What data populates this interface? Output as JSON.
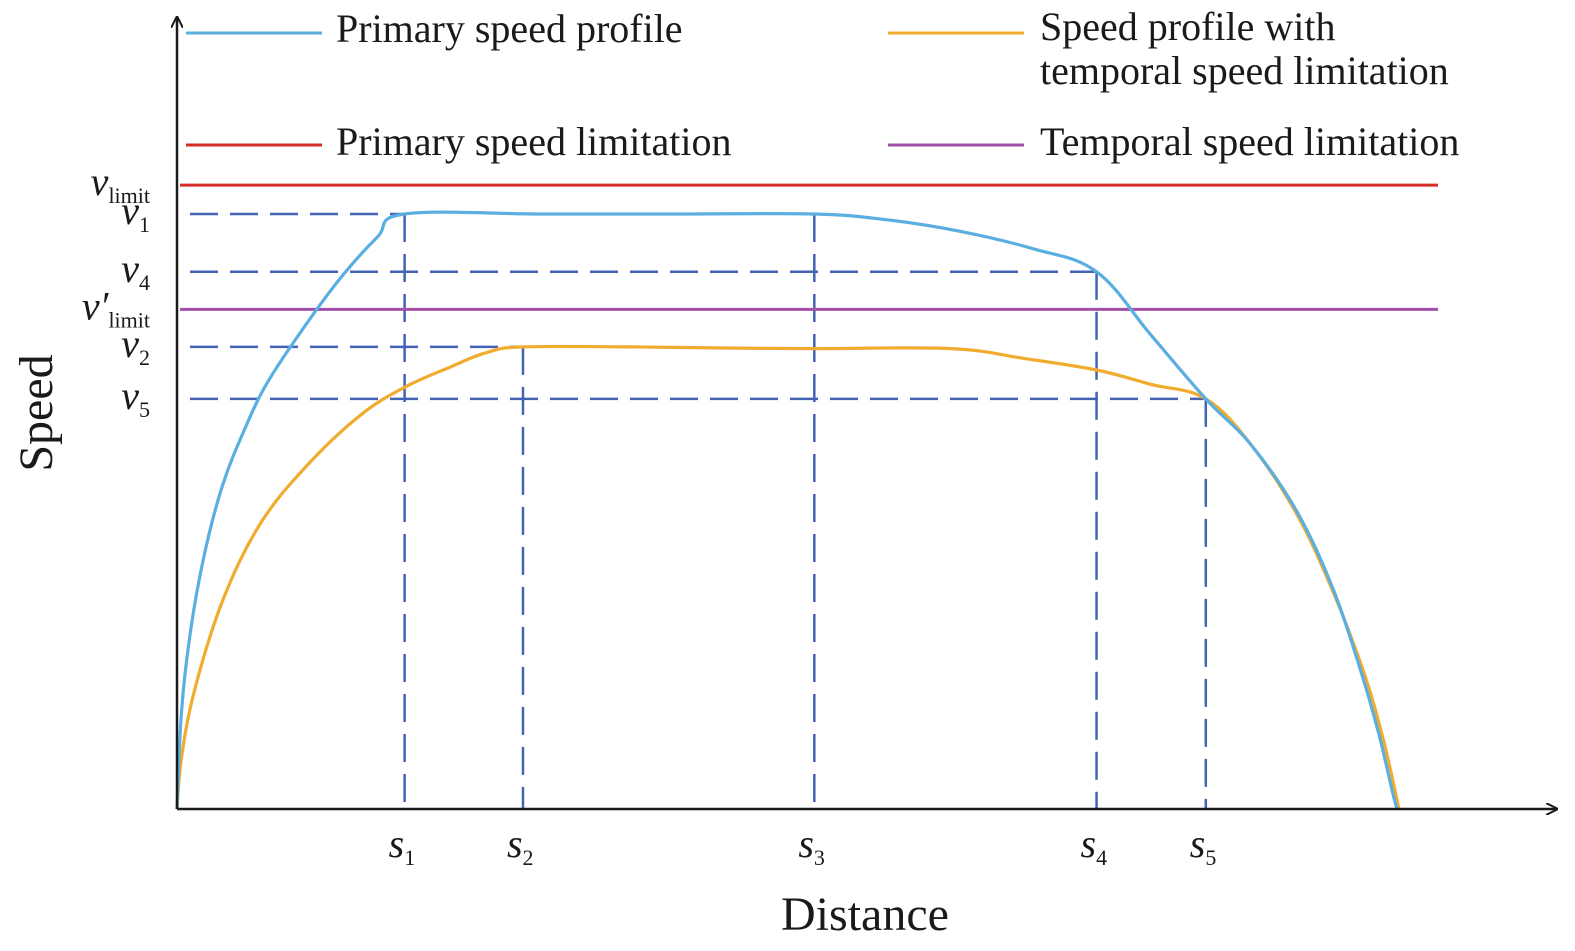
{
  "chart_data": {
    "type": "line",
    "xlabel": "Distance",
    "ylabel": "Speed",
    "xlim": [
      0,
      13.6
    ],
    "ylim": [
      0,
      11
    ],
    "grid": false,
    "legend_placement": "top",
    "legend": [
      {
        "label": "Primary speed profile",
        "color": "#5aafe0",
        "series": "primary"
      },
      {
        "label_lines": [
          "Speed profile with",
          "temporal speed limitation"
        ],
        "color": "#f0ac2e",
        "series": "temporal"
      },
      {
        "label": "Primary speed limitation",
        "color": "#d62c2a",
        "series": "limit"
      },
      {
        "label": "Temporal speed limitation",
        "color": "#a050a8",
        "series": "limit_prime"
      }
    ],
    "x_ticks": [
      {
        "main": "s",
        "sub": "1",
        "value": 2.5
      },
      {
        "main": "s",
        "sub": "2",
        "value": 3.8
      },
      {
        "main": "s",
        "sub": "3",
        "value": 7.0
      },
      {
        "main": "s",
        "sub": "4",
        "value": 10.1
      },
      {
        "main": "s",
        "sub": "5",
        "value": 11.3
      }
    ],
    "y_ticks": [
      {
        "main": "v",
        "sub": "limit",
        "prime": false,
        "value": 10.8
      },
      {
        "main": "v",
        "sub": "1",
        "prime": false,
        "value": 10.3
      },
      {
        "main": "v",
        "sub": "4",
        "prime": false,
        "value": 9.3
      },
      {
        "main": "v",
        "sub": "limit",
        "prime": true,
        "value": 8.65
      },
      {
        "main": "v",
        "sub": "2",
        "prime": false,
        "value": 8.0
      },
      {
        "main": "v",
        "sub": "5",
        "prime": false,
        "value": 7.1
      }
    ],
    "limits": [
      {
        "series": "limit",
        "value": 10.8,
        "x_range": [
          0,
          13.85
        ]
      },
      {
        "series": "limit_prime",
        "value": 8.65,
        "x_range": [
          0,
          13.85
        ]
      }
    ],
    "series": [
      {
        "id": "primary",
        "points": [
          [
            0,
            0
          ],
          [
            0.05,
            1.7
          ],
          [
            0.15,
            3.1
          ],
          [
            0.3,
            4.4
          ],
          [
            0.5,
            5.6
          ],
          [
            0.75,
            6.6
          ],
          [
            1.0,
            7.4
          ],
          [
            1.4,
            8.35
          ],
          [
            1.8,
            9.2
          ],
          [
            2.2,
            9.9
          ],
          [
            2.5,
            10.3
          ],
          [
            4.0,
            10.3
          ],
          [
            5.5,
            10.3
          ],
          [
            7.0,
            10.3
          ],
          [
            7.8,
            10.2
          ],
          [
            8.6,
            10.0
          ],
          [
            9.4,
            9.7
          ],
          [
            10.1,
            9.3
          ],
          [
            10.7,
            8.2
          ],
          [
            11.3,
            7.1
          ],
          [
            11.8,
            6.3
          ],
          [
            12.3,
            5.15
          ],
          [
            12.7,
            3.8
          ],
          [
            13.0,
            2.4
          ],
          [
            13.2,
            1.3
          ],
          [
            13.35,
            0.3
          ],
          [
            13.4,
            0
          ]
        ]
      },
      {
        "id": "temporal",
        "points": [
          [
            0,
            0
          ],
          [
            0.05,
            0.9
          ],
          [
            0.2,
            2.1
          ],
          [
            0.5,
            3.6
          ],
          [
            0.9,
            4.9
          ],
          [
            1.4,
            5.9
          ],
          [
            2.0,
            6.8
          ],
          [
            2.5,
            7.3
          ],
          [
            3.0,
            7.65
          ],
          [
            3.4,
            7.9
          ],
          [
            3.8,
            8.0
          ],
          [
            5.0,
            8.0
          ],
          [
            6.0,
            7.98
          ],
          [
            7.0,
            7.97
          ],
          [
            8.5,
            7.97
          ],
          [
            9.3,
            7.8
          ],
          [
            10.1,
            7.6
          ],
          [
            10.7,
            7.35
          ],
          [
            11.3,
            7.1
          ],
          [
            11.8,
            6.3
          ],
          [
            12.3,
            5.1
          ],
          [
            12.7,
            3.75
          ],
          [
            13.05,
            2.3
          ],
          [
            13.25,
            1.2
          ],
          [
            13.38,
            0.3
          ],
          [
            13.42,
            0
          ]
        ]
      }
    ],
    "guides": [
      {
        "x": 2.5,
        "y": 10.3
      },
      {
        "x": 7.0,
        "y": 10.3,
        "vertical_only": true
      },
      {
        "x": 10.1,
        "y": 9.3
      },
      {
        "x": 3.8,
        "y": 8.0
      },
      {
        "x": 11.3,
        "y": 7.1
      }
    ],
    "guide_color": "#4463b4"
  }
}
